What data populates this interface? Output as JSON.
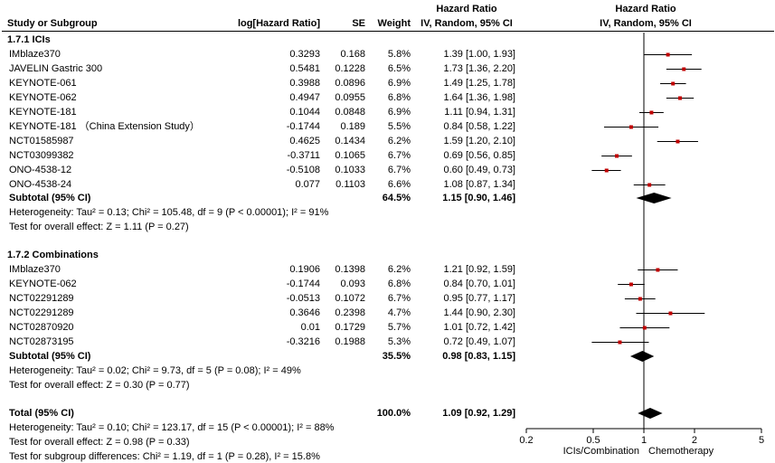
{
  "header": {
    "col_study": "Study or Subgroup",
    "col_log": "log[Hazard Ratio]",
    "col_se": "SE",
    "col_weight": "Weight",
    "col_hr_title": "Hazard Ratio",
    "col_hr_sub": "IV, Random, 95% CI",
    "plot_title": "Hazard Ratio",
    "plot_sub": "IV, Random, 95% CI"
  },
  "subgroups": [
    {
      "title": "1.7.1 ICIs",
      "studies": [
        {
          "name": "IMblaze370",
          "log": "0.3293",
          "se": "0.168",
          "weight": "5.8%",
          "ci": "1.39 [1.00, 1.93]"
        },
        {
          "name": "JAVELIN Gastric 300",
          "log": "0.5481",
          "se": "0.1228",
          "weight": "6.5%",
          "ci": "1.73 [1.36, 2.20]"
        },
        {
          "name": "KEYNOTE-061",
          "log": "0.3988",
          "se": "0.0896",
          "weight": "6.9%",
          "ci": "1.49 [1.25, 1.78]"
        },
        {
          "name": "KEYNOTE-062",
          "log": "0.4947",
          "se": "0.0955",
          "weight": "6.8%",
          "ci": "1.64 [1.36, 1.98]"
        },
        {
          "name": "KEYNOTE-181",
          "log": "0.1044",
          "se": "0.0848",
          "weight": "6.9%",
          "ci": "1.11 [0.94, 1.31]"
        },
        {
          "name": "KEYNOTE-181 （China Extension Study）",
          "log": "-0.1744",
          "se": "0.189",
          "weight": "5.5%",
          "ci": "0.84 [0.58, 1.22]"
        },
        {
          "name": "NCT01585987",
          "log": "0.4625",
          "se": "0.1434",
          "weight": "6.2%",
          "ci": "1.59 [1.20, 2.10]"
        },
        {
          "name": "NCT03099382",
          "log": "-0.3711",
          "se": "0.1065",
          "weight": "6.7%",
          "ci": "0.69 [0.56, 0.85]"
        },
        {
          "name": "ONO-4538-12",
          "log": "-0.5108",
          "se": "0.1033",
          "weight": "6.7%",
          "ci": "0.60 [0.49, 0.73]"
        },
        {
          "name": "ONO-4538-24",
          "log": "0.077",
          "se": "0.1103",
          "weight": "6.6%",
          "ci": "1.08 [0.87, 1.34]"
        }
      ],
      "subtotal": {
        "label": "Subtotal (95% CI)",
        "weight": "64.5%",
        "ci": "1.15 [0.90, 1.46]"
      },
      "heterogeneity": "Heterogeneity: Tau² = 0.13; Chi² = 105.48, df = 9 (P < 0.00001); I² = 91%",
      "overall": "Test for overall effect: Z = 1.11 (P = 0.27)"
    },
    {
      "title": "1.7.2 Combinations",
      "studies": [
        {
          "name": "IMblaze370",
          "log": "0.1906",
          "se": "0.1398",
          "weight": "6.2%",
          "ci": "1.21 [0.92, 1.59]"
        },
        {
          "name": "KEYNOTE-062",
          "log": "-0.1744",
          "se": "0.093",
          "weight": "6.8%",
          "ci": "0.84 [0.70, 1.01]"
        },
        {
          "name": "NCT02291289",
          "log": "-0.0513",
          "se": "0.1072",
          "weight": "6.7%",
          "ci": "0.95 [0.77, 1.17]"
        },
        {
          "name": "NCT02291289",
          "log": "0.3646",
          "se": "0.2398",
          "weight": "4.7%",
          "ci": "1.44 [0.90, 2.30]"
        },
        {
          "name": "NCT02870920",
          "log": "0.01",
          "se": "0.1729",
          "weight": "5.7%",
          "ci": "1.01 [0.72, 1.42]"
        },
        {
          "name": "NCT02873195",
          "log": "-0.3216",
          "se": "0.1988",
          "weight": "5.3%",
          "ci": "0.72 [0.49, 1.07]"
        }
      ],
      "subtotal": {
        "label": "Subtotal (95% CI)",
        "weight": "35.5%",
        "ci": "0.98 [0.83, 1.15]"
      },
      "heterogeneity": "Heterogeneity: Tau² = 0.02; Chi² = 9.73, df = 5 (P = 0.08); I² = 49%",
      "overall": "Test for overall effect: Z = 0.30 (P = 0.77)"
    }
  ],
  "total": {
    "label": "Total (95% CI)",
    "weight": "100.0%",
    "ci": "1.09 [0.92, 1.29]",
    "heterogeneity": "Heterogeneity: Tau² = 0.10; Chi² = 123.17, df = 15 (P < 0.00001); I² = 88%",
    "overall": "Test for overall effect: Z = 0.98 (P = 0.33)",
    "subgroup_diff": "Test for subgroup differences: Chi² = 1.19, df = 1 (P = 0.28), I² = 15.8%"
  },
  "chart_data": {
    "type": "forest",
    "scale": "log",
    "xlim": [
      0.2,
      5
    ],
    "ticks": [
      "0.2",
      "0.5",
      "1",
      "2",
      "5"
    ],
    "xlabel_left": "ICIs/Combination",
    "xlabel_right": "Chemotherapy",
    "null_value": 1,
    "colors": {
      "point": "#c00000",
      "line": "#000000",
      "diamond": "#000000"
    },
    "studies": [
      {
        "hr": 1.39,
        "lo": 1.0,
        "hi": 1.93
      },
      {
        "hr": 1.73,
        "lo": 1.36,
        "hi": 2.2
      },
      {
        "hr": 1.49,
        "lo": 1.25,
        "hi": 1.78
      },
      {
        "hr": 1.64,
        "lo": 1.36,
        "hi": 1.98
      },
      {
        "hr": 1.11,
        "lo": 0.94,
        "hi": 1.31
      },
      {
        "hr": 0.84,
        "lo": 0.58,
        "hi": 1.22
      },
      {
        "hr": 1.59,
        "lo": 1.2,
        "hi": 2.1
      },
      {
        "hr": 0.69,
        "lo": 0.56,
        "hi": 0.85
      },
      {
        "hr": 0.6,
        "lo": 0.49,
        "hi": 0.73
      },
      {
        "hr": 1.08,
        "lo": 0.87,
        "hi": 1.34
      },
      {
        "hr": 1.21,
        "lo": 0.92,
        "hi": 1.59
      },
      {
        "hr": 0.84,
        "lo": 0.7,
        "hi": 1.01
      },
      {
        "hr": 0.95,
        "lo": 0.77,
        "hi": 1.17
      },
      {
        "hr": 1.44,
        "lo": 0.9,
        "hi": 2.3
      },
      {
        "hr": 1.01,
        "lo": 0.72,
        "hi": 1.42
      },
      {
        "hr": 0.72,
        "lo": 0.49,
        "hi": 1.07
      }
    ],
    "summaries": [
      {
        "name": "Subtotal 1.7.1",
        "hr": 1.15,
        "lo": 0.9,
        "hi": 1.46
      },
      {
        "name": "Subtotal 1.7.2",
        "hr": 0.98,
        "lo": 0.83,
        "hi": 1.15
      },
      {
        "name": "Total",
        "hr": 1.09,
        "lo": 0.92,
        "hi": 1.29
      }
    ]
  }
}
